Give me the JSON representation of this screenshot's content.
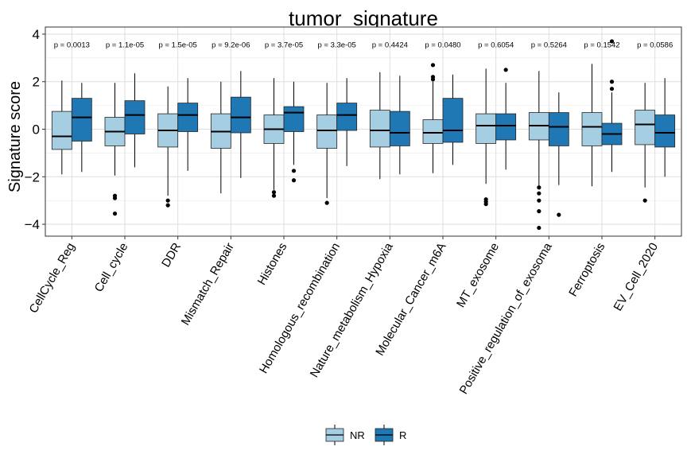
{
  "chart_data": {
    "type": "box",
    "title": "tumor_signature",
    "xlabel": "",
    "ylabel": "Signature score",
    "ylim": [
      -4.5,
      4.3
    ],
    "yticks": [
      -4,
      -2,
      0,
      2,
      4
    ],
    "grid": true,
    "legend_position": "bottom",
    "colors": {
      "NR": "#a6cee3",
      "R": "#1f78b4"
    },
    "categories": [
      "CellCycle_Reg",
      "Cell_cycle",
      "DDR",
      "Mismatch_Repair",
      "Histones",
      "Homologous_recombination",
      "Nature_metabolism_Hypoxia",
      "Molecular_Cancer_m6A",
      "MT_exosome",
      "Positive_regulation_of_exosoma",
      "Ferroptosis",
      "EV_Cell_2020"
    ],
    "p_values": [
      "p = 0.0013",
      "p = 1.1e-05",
      "p = 1.5e-05",
      "p = 9.2e-06",
      "p = 3.7e-05",
      "p = 3.3e-05",
      "p = 0.4424",
      "p = 0.0480",
      "p = 0.6054",
      "p = 0.5264",
      "p = 0.1542",
      "p = 0.0586"
    ],
    "series": [
      {
        "name": "NR",
        "boxes": [
          {
            "min": -1.9,
            "q1": -0.85,
            "median": -0.3,
            "q3": 0.75,
            "max": 2.05,
            "outliers": []
          },
          {
            "min": -1.95,
            "q1": -0.7,
            "median": -0.1,
            "q3": 0.5,
            "max": 1.95,
            "outliers": [
              -2.8,
              -2.9,
              -3.55
            ]
          },
          {
            "min": -2.8,
            "q1": -0.75,
            "median": -0.05,
            "q3": 0.65,
            "max": 1.8,
            "outliers": [
              -3.0,
              -3.2
            ]
          },
          {
            "min": -2.7,
            "q1": -0.8,
            "median": -0.1,
            "q3": 0.65,
            "max": 2.0,
            "outliers": []
          },
          {
            "min": -2.55,
            "q1": -0.6,
            "median": 0.0,
            "q3": 0.6,
            "max": 2.15,
            "outliers": [
              -2.65,
              -2.8
            ]
          },
          {
            "min": -2.9,
            "q1": -0.8,
            "median": -0.05,
            "q3": 0.6,
            "max": 1.95,
            "outliers": [
              -3.1
            ]
          },
          {
            "min": -2.1,
            "q1": -0.75,
            "median": -0.05,
            "q3": 0.8,
            "max": 2.4,
            "outliers": []
          },
          {
            "min": -1.85,
            "q1": -0.6,
            "median": -0.15,
            "q3": 0.4,
            "max": 2.0,
            "outliers": [
              2.1,
              2.2,
              2.7
            ]
          },
          {
            "min": -2.3,
            "q1": -0.6,
            "median": 0.15,
            "q3": 0.65,
            "max": 2.55,
            "outliers": [
              -2.95,
              -3.05,
              -3.15
            ]
          },
          {
            "min": -2.4,
            "q1": -0.45,
            "median": 0.15,
            "q3": 0.7,
            "max": 2.45,
            "outliers": [
              -2.45,
              -2.7,
              -3.0,
              -3.45,
              -4.15
            ]
          },
          {
            "min": -2.4,
            "q1": -0.7,
            "median": 0.1,
            "q3": 0.7,
            "max": 2.75,
            "outliers": []
          },
          {
            "min": -2.45,
            "q1": -0.65,
            "median": 0.2,
            "q3": 0.8,
            "max": 1.95,
            "outliers": [
              -3.0
            ]
          }
        ]
      },
      {
        "name": "R",
        "boxes": [
          {
            "min": -1.8,
            "q1": -0.5,
            "median": 0.5,
            "q3": 1.3,
            "max": 1.95,
            "outliers": []
          },
          {
            "min": -1.6,
            "q1": -0.2,
            "median": 0.6,
            "q3": 1.2,
            "max": 2.35,
            "outliers": []
          },
          {
            "min": -1.75,
            "q1": -0.1,
            "median": 0.6,
            "q3": 1.1,
            "max": 2.15,
            "outliers": []
          },
          {
            "min": -2.05,
            "q1": -0.15,
            "median": 0.5,
            "q3": 1.35,
            "max": 2.45,
            "outliers": []
          },
          {
            "min": -1.5,
            "q1": -0.1,
            "median": 0.7,
            "q3": 0.95,
            "max": 2.0,
            "outliers": [
              -1.75,
              -2.15
            ]
          },
          {
            "min": -1.55,
            "q1": -0.05,
            "median": 0.6,
            "q3": 1.1,
            "max": 2.15,
            "outliers": []
          },
          {
            "min": -1.9,
            "q1": -0.7,
            "median": -0.15,
            "q3": 0.75,
            "max": 2.25,
            "outliers": []
          },
          {
            "min": -1.5,
            "q1": -0.55,
            "median": -0.05,
            "q3": 1.3,
            "max": 2.3,
            "outliers": []
          },
          {
            "min": -1.7,
            "q1": -0.45,
            "median": 0.15,
            "q3": 0.65,
            "max": 1.95,
            "outliers": [
              2.5
            ]
          },
          {
            "min": -2.35,
            "q1": -0.7,
            "median": 0.1,
            "q3": 0.7,
            "max": 1.55,
            "outliers": [
              -3.6
            ]
          },
          {
            "min": -1.8,
            "q1": -0.65,
            "median": -0.2,
            "q3": 0.25,
            "max": 1.55,
            "outliers": [
              1.7,
              2.0,
              3.7
            ]
          },
          {
            "min": -2.0,
            "q1": -0.75,
            "median": -0.15,
            "q3": 0.6,
            "max": 2.15,
            "outliers": []
          }
        ]
      }
    ]
  }
}
